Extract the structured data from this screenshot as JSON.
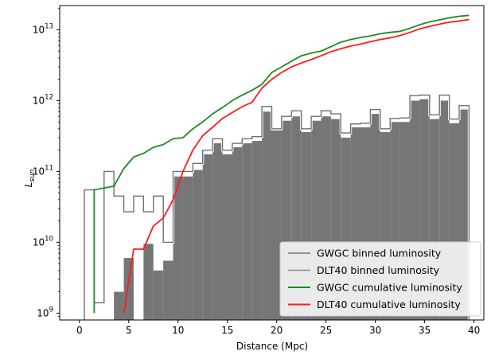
{
  "chart_data": {
    "type": "bar",
    "xlabel": "Distance (Mpc)",
    "ylabel_base": "L",
    "ylabel_sub": "sun",
    "y_scale": "log",
    "xlim": [
      -2,
      41
    ],
    "ylim": [
      800000000,
      22000000000000
    ],
    "x_ticks": [
      0,
      5,
      10,
      15,
      20,
      25,
      30,
      35,
      40
    ],
    "x_tick_labels": [
      "0",
      "5",
      "10",
      "15",
      "20",
      "25",
      "30",
      "35",
      "40"
    ],
    "y_ticks": [
      1000000000,
      10000000000,
      100000000000,
      1000000000000,
      10000000000000
    ],
    "y_tick_base": "10",
    "y_tick_exponents": [
      "9",
      "10",
      "11",
      "12",
      "13"
    ],
    "grid": false,
    "legend_position": "bottom-right",
    "bin_edges": [
      0.5,
      1.5,
      2.5,
      3.5,
      4.5,
      5.5,
      6.5,
      7.5,
      8.5,
      9.5,
      10.5,
      11.5,
      12.5,
      13.5,
      14.5,
      15.5,
      16.5,
      17.5,
      18.5,
      19.5,
      20.5,
      21.5,
      22.5,
      23.5,
      24.5,
      25.5,
      26.5,
      27.5,
      28.5,
      29.5,
      30.5,
      31.5,
      32.5,
      33.5,
      34.5,
      35.5,
      36.5,
      37.5,
      38.5,
      39.5
    ],
    "series": [
      {
        "name": "GWGC binned luminosity",
        "style": "step",
        "color": "#707070",
        "values": [
          55000000000,
          1400000000,
          100000000000,
          45000000000,
          27000000000,
          45000000000,
          27000000000,
          45000000000,
          10000000000,
          100000000000,
          100000000000,
          130000000000,
          200000000000,
          290000000000,
          200000000000,
          250000000000,
          290000000000,
          310000000000,
          830000000000,
          400000000000,
          600000000000,
          720000000000,
          400000000000,
          600000000000,
          720000000000,
          650000000000,
          350000000000,
          470000000000,
          480000000000,
          750000000000,
          400000000000,
          560000000000,
          570000000000,
          1180000000000,
          1200000000000,
          630000000000,
          1200000000000,
          550000000000,
          850000000000
        ]
      },
      {
        "name": "DLT40 binned luminosity",
        "style": "filled",
        "color": "#767676",
        "values": [
          null,
          null,
          null,
          2000000000,
          6000000000,
          null,
          9500000000,
          4000000000,
          5500000000,
          85000000000,
          85000000000,
          105000000000,
          175000000000,
          250000000000,
          175000000000,
          220000000000,
          250000000000,
          270000000000,
          700000000000,
          380000000000,
          520000000000,
          600000000000,
          360000000000,
          520000000000,
          600000000000,
          550000000000,
          300000000000,
          420000000000,
          420000000000,
          650000000000,
          360000000000,
          500000000000,
          500000000000,
          1000000000000,
          1050000000000,
          550000000000,
          1000000000000,
          480000000000,
          750000000000
        ]
      },
      {
        "name": "GWGC cumulative luminosity",
        "style": "line",
        "color": "#1f8a1f",
        "x": [
          1.5,
          1.5,
          3.5,
          4.5,
          5.5,
          6.5,
          7.5,
          8.5,
          9.5,
          10.5,
          11.5,
          12.5,
          13.5,
          14.5,
          15.5,
          16.5,
          17.5,
          18.5,
          19.5,
          20.5,
          21.5,
          22.5,
          23.5,
          24.5,
          25.5,
          26.5,
          27.5,
          28.5,
          29.5,
          30.5,
          31.5,
          32.5,
          33.5,
          34.5,
          35.5,
          36.5,
          37.5,
          38.5,
          39.5
        ],
        "values": [
          1000000000,
          55000000000,
          62000000000,
          110000000000,
          160000000000,
          180000000000,
          220000000000,
          240000000000,
          290000000000,
          300000000000,
          400000000000,
          500000000000,
          650000000000,
          800000000000,
          1000000000000,
          1200000000000,
          1400000000000,
          1700000000000,
          2500000000000,
          3000000000000,
          3600000000000,
          4300000000000,
          4700000000000,
          5000000000000,
          5800000000000,
          6700000000000,
          7300000000000,
          7800000000000,
          8200000000000,
          8800000000000,
          9200000000000,
          9500000000000,
          10500000000000,
          11800000000000,
          13000000000000,
          13800000000000,
          14800000000000,
          15500000000000,
          16000000000000
        ]
      },
      {
        "name": "DLT40 cumulative luminosity",
        "style": "line",
        "color": "#ff1a1a",
        "x": [
          4.5,
          5.5,
          6.5,
          7.5,
          8.5,
          9.5,
          10.5,
          11.5,
          12.5,
          13.5,
          14.5,
          15.5,
          16.5,
          17.5,
          18.5,
          19.5,
          20.5,
          21.5,
          22.5,
          23.5,
          24.5,
          25.5,
          26.5,
          27.5,
          28.5,
          29.5,
          30.5,
          31.5,
          32.5,
          33.5,
          34.5,
          35.5,
          36.5,
          37.5,
          38.5,
          39.5
        ],
        "values": [
          1000000000,
          8000000000,
          8000000000,
          17000000000,
          22000000000,
          40000000000,
          100000000000,
          200000000000,
          320000000000,
          420000000000,
          560000000000,
          680000000000,
          820000000000,
          950000000000,
          1500000000000,
          2000000000000,
          2500000000000,
          3000000000000,
          3400000000000,
          3800000000000,
          4300000000000,
          4900000000000,
          5400000000000,
          5900000000000,
          6300000000000,
          6800000000000,
          7300000000000,
          7700000000000,
          8300000000000,
          9200000000000,
          10300000000000,
          11200000000000,
          12000000000000,
          12800000000000,
          13300000000000,
          14000000000000
        ]
      }
    ]
  }
}
